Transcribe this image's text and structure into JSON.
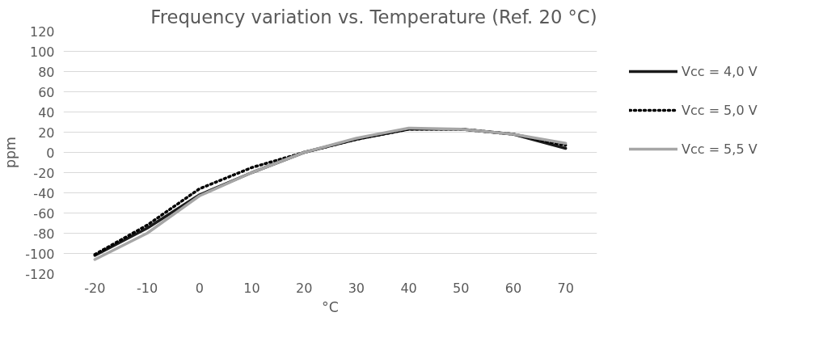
{
  "chart_data": {
    "type": "line",
    "title": "Frequency variation vs. Temperature (Ref. 20 °C)",
    "xlabel": "°C",
    "ylabel": "ppm",
    "categories": [
      "-20",
      "-10",
      "0",
      "10",
      "20",
      "30",
      "40",
      "50",
      "60",
      "70"
    ],
    "series": [
      {
        "name": "Vcc = 4,0 V",
        "color": "#1a1a1a",
        "line_style": "solid",
        "values": [
          -102,
          -75,
          -42,
          -20,
          0,
          13,
          23,
          23,
          18,
          4
        ]
      },
      {
        "name": "Vcc = 5,0 V",
        "color": "#000000",
        "line_style": "dotted",
        "values": [
          -101,
          -72,
          -36,
          -15,
          0,
          13,
          23,
          23,
          18,
          7
        ]
      },
      {
        "name": "Vcc = 5,5 V",
        "color": "#a6a6a6",
        "line_style": "solid",
        "values": [
          -106,
          -80,
          -43,
          -20,
          0,
          14,
          24,
          23,
          18,
          9
        ]
      }
    ],
    "ylim": [
      -120,
      120
    ],
    "yticks": [
      -120,
      -100,
      -80,
      -60,
      -40,
      -20,
      0,
      20,
      40,
      60,
      80,
      100,
      120
    ],
    "grid": "y",
    "legend": "right"
  }
}
